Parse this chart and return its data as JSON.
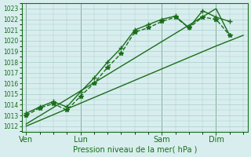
{
  "background_color": "#d8eeee",
  "grid_color": "#aacccc",
  "line_color": "#1a6e1a",
  "xlabel": "Pression niveau de la mer( hPa )",
  "ylabel_ticks": [
    1012,
    1013,
    1014,
    1015,
    1016,
    1017,
    1018,
    1019,
    1020,
    1021,
    1022,
    1023
  ],
  "ylim": [
    1011.5,
    1023.5
  ],
  "xtick_labels": [
    "Ven",
    "Lun",
    "Sam",
    "Dim"
  ],
  "xtick_positions": [
    0,
    48,
    120,
    168
  ],
  "xlim": [
    -4,
    196
  ],
  "series": [
    {
      "x": [
        0,
        12,
        24,
        36,
        48,
        60,
        72,
        84,
        96,
        108,
        120,
        132,
        144,
        156,
        168,
        180
      ],
      "y": [
        1013.0,
        1013.7,
        1014.1,
        1013.5,
        1014.8,
        1016.0,
        1017.5,
        1018.8,
        1020.8,
        1021.2,
        1021.8,
        1022.2,
        1021.2,
        1022.2,
        1022.0,
        1020.5
      ],
      "marker": "*",
      "markersize": 4,
      "linestyle": "--",
      "linewidth": 1.0
    },
    {
      "x": [
        0,
        12,
        24,
        36,
        48,
        60,
        72,
        84,
        96,
        108,
        120,
        132,
        144,
        156,
        168,
        180
      ],
      "y": [
        1013.2,
        1013.8,
        1014.3,
        1013.8,
        1015.2,
        1016.5,
        1018.0,
        1019.3,
        1021.0,
        1021.5,
        1022.0,
        1022.3,
        1021.2,
        1022.8,
        1022.2,
        1021.8
      ],
      "marker": "+",
      "markersize": 5,
      "linestyle": "-",
      "linewidth": 1.0
    },
    {
      "x": [
        0,
        168,
        192
      ],
      "y": [
        1012.0,
        1019.5,
        1020.5
      ],
      "marker": null,
      "markersize": 0,
      "linestyle": "-",
      "linewidth": 1.0
    },
    {
      "x": [
        0,
        168,
        180
      ],
      "y": [
        1012.2,
        1023.0,
        1020.5
      ],
      "marker": null,
      "markersize": 0,
      "linestyle": "-",
      "linewidth": 1.0
    }
  ],
  "vline_positions": [
    0,
    48,
    120,
    168
  ],
  "vline_color": "#336633",
  "vline_linewidth": 0.7
}
